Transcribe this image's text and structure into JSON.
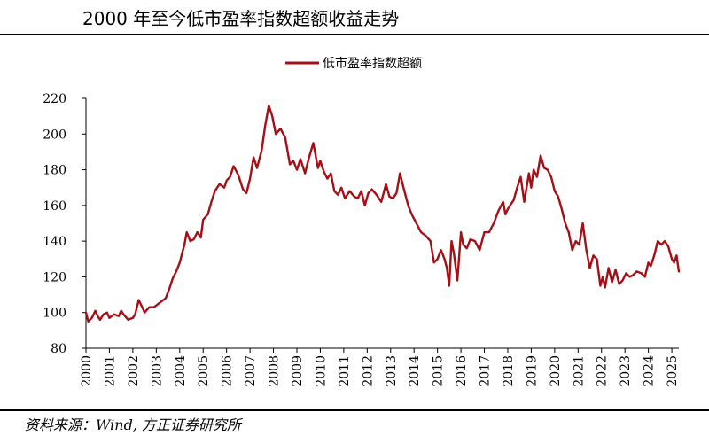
{
  "header": {
    "title": "2000 年至今低市盈率指数超额收益走势"
  },
  "footer": {
    "source": "资料来源：Wind, 方正证券研究所"
  },
  "colors": {
    "series": "#a50f15",
    "axis": "#000000"
  },
  "chart_data": {
    "type": "line",
    "title": "2000 年至今低市盈率指数超额收益走势",
    "xlabel": "",
    "ylabel": "",
    "ylim": [
      80,
      220
    ],
    "yticks": [
      80,
      100,
      120,
      140,
      160,
      180,
      200,
      220
    ],
    "xlim": [
      2000,
      2025.3
    ],
    "xticks": [
      "2000",
      "2001",
      "2002",
      "2003",
      "2004",
      "2005",
      "2006",
      "2007",
      "2008",
      "2009",
      "2010",
      "2011",
      "2012",
      "2013",
      "2014",
      "2015",
      "2016",
      "2017",
      "2018",
      "2019",
      "2020",
      "2021",
      "2022",
      "2023",
      "2024",
      "2025"
    ],
    "grid": false,
    "legend_position": "top-center",
    "series": [
      {
        "name": "低市盈率指数超额",
        "x": [
          2000.0,
          2000.1,
          2000.25,
          2000.4,
          2000.5,
          2000.6,
          2000.75,
          2000.9,
          2001.0,
          2001.2,
          2001.4,
          2001.5,
          2001.6,
          2001.8,
          2002.0,
          2002.1,
          2002.25,
          2002.4,
          2002.5,
          2002.7,
          2002.9,
          2003.0,
          2003.2,
          2003.4,
          2003.55,
          2003.7,
          2003.85,
          2004.0,
          2004.1,
          2004.2,
          2004.3,
          2004.45,
          2004.6,
          2004.75,
          2004.9,
          2005.0,
          2005.2,
          2005.35,
          2005.5,
          2005.7,
          2005.9,
          2006.0,
          2006.15,
          2006.3,
          2006.5,
          2006.7,
          2006.85,
          2007.0,
          2007.15,
          2007.3,
          2007.5,
          2007.65,
          2007.8,
          2007.95,
          2008.1,
          2008.3,
          2008.5,
          2008.7,
          2008.85,
          2009.0,
          2009.15,
          2009.35,
          2009.5,
          2009.7,
          2009.9,
          2010.0,
          2010.15,
          2010.3,
          2010.45,
          2010.6,
          2010.75,
          2010.9,
          2011.05,
          2011.25,
          2011.45,
          2011.6,
          2011.75,
          2011.9,
          2012.05,
          2012.2,
          2012.4,
          2012.6,
          2012.8,
          2012.95,
          2013.1,
          2013.25,
          2013.4,
          2013.55,
          2013.75,
          2013.9,
          2014.1,
          2014.3,
          2014.5,
          2014.7,
          2014.85,
          2015.0,
          2015.15,
          2015.3,
          2015.4,
          2015.5,
          2015.6,
          2015.7,
          2015.85,
          2016.0,
          2016.1,
          2016.25,
          2016.4,
          2016.6,
          2016.8,
          2017.0,
          2017.2,
          2017.4,
          2017.6,
          2017.8,
          2017.9,
          2018.0,
          2018.1,
          2018.25,
          2018.4,
          2018.55,
          2018.7,
          2018.9,
          2019.0,
          2019.1,
          2019.25,
          2019.4,
          2019.55,
          2019.7,
          2019.85,
          2020.0,
          2020.15,
          2020.3,
          2020.45,
          2020.6,
          2020.75,
          2020.9,
          2021.05,
          2021.2,
          2021.35,
          2021.5,
          2021.65,
          2021.8,
          2021.95,
          2022.05,
          2022.15,
          2022.3,
          2022.45,
          2022.6,
          2022.75,
          2022.9,
          2023.05,
          2023.2,
          2023.35,
          2023.5,
          2023.7,
          2023.85,
          2024.0,
          2024.1,
          2024.25,
          2024.4,
          2024.55,
          2024.7,
          2024.85,
          2025.0,
          2025.1,
          2025.2,
          2025.3
        ],
        "values": [
          100,
          95,
          97,
          101,
          98,
          96,
          99,
          100,
          97,
          99,
          98,
          101,
          99,
          96,
          97,
          99,
          107,
          103,
          100,
          103,
          103,
          104,
          106,
          108,
          113,
          119,
          123,
          128,
          133,
          138,
          145,
          140,
          141,
          145,
          142,
          152,
          155,
          162,
          168,
          172,
          170,
          174,
          176,
          182,
          177,
          169,
          167,
          175,
          187,
          181,
          191,
          205,
          216,
          210,
          200,
          203,
          198,
          183,
          185,
          180,
          186,
          178,
          186,
          195,
          181,
          185,
          179,
          175,
          178,
          168,
          166,
          170,
          164,
          168,
          165,
          164,
          168,
          160,
          167,
          169,
          166,
          162,
          172,
          165,
          164,
          167,
          178,
          170,
          160,
          155,
          150,
          145,
          143,
          140,
          128,
          130,
          135,
          130,
          125,
          115,
          140,
          133,
          118,
          145,
          138,
          136,
          141,
          140,
          135,
          145,
          145,
          150,
          157,
          162,
          155,
          158,
          160,
          163,
          170,
          176,
          162,
          178,
          170,
          180,
          176,
          188,
          181,
          180,
          176,
          168,
          165,
          158,
          150,
          145,
          135,
          140,
          138,
          150,
          135,
          125,
          132,
          130,
          115,
          120,
          114,
          125,
          117,
          124,
          116,
          118,
          122,
          120,
          121,
          123,
          122,
          120,
          128,
          126,
          132,
          140,
          138,
          140,
          137,
          130,
          128,
          132,
          123
        ]
      }
    ]
  }
}
